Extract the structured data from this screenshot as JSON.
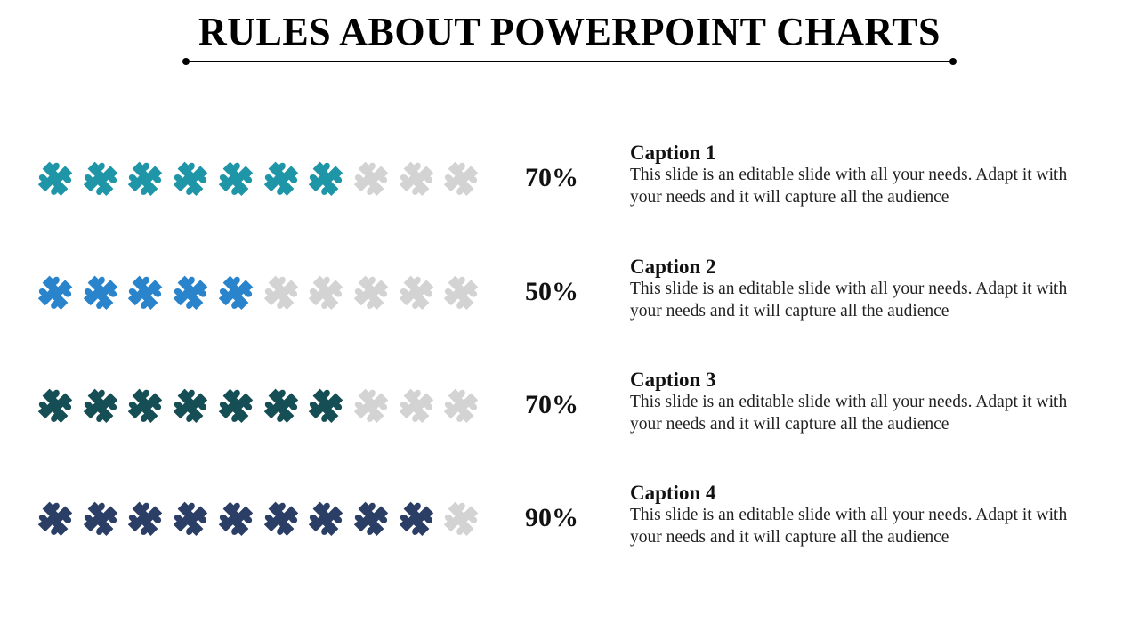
{
  "title": "RULES ABOUT POWERPOINT CHARTS",
  "chart_data": {
    "type": "bar",
    "units_per_row": 10,
    "inactive_color": "#d3d3d3",
    "series": [
      {
        "value": 70,
        "label": "70%",
        "color": "#1f96a8",
        "caption": "Caption 1",
        "text": "This slide is an editable slide with all your needs. Adapt it with your needs and it will capture all the audience"
      },
      {
        "value": 50,
        "label": "50%",
        "color": "#2a84cc",
        "caption": "Caption 2",
        "text": "This slide is an editable slide with all your needs. Adapt it with your needs and it will capture all the audience"
      },
      {
        "value": 70,
        "label": "70%",
        "color": "#164e56",
        "caption": "Caption 3",
        "text": "This slide is an editable slide with all your needs. Adapt it with your needs and it will capture all the audience"
      },
      {
        "value": 90,
        "label": "90%",
        "color": "#2b3e66",
        "caption": "Caption 4",
        "text": "This slide is an editable slide with all your needs. Adapt it with your needs and it will capture all the audience"
      }
    ]
  }
}
